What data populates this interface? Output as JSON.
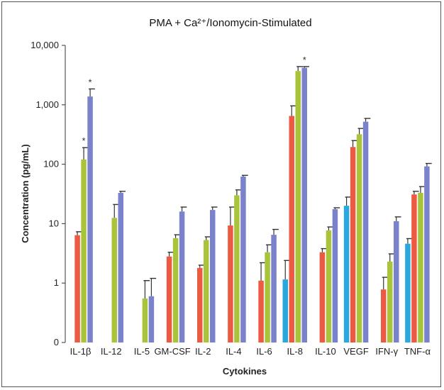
{
  "chart_data": {
    "type": "bar",
    "title": "PMA + Ca²⁺/Ionomycin-Stimulated",
    "xlabel": "Cytokines",
    "ylabel": "Concentration (pg/mL)",
    "yscale": "log",
    "ylim": [
      0.1,
      10000
    ],
    "yticks": [
      {
        "value": 10000,
        "label": "10,000"
      },
      {
        "value": 1000,
        "label": "1,000"
      },
      {
        "value": 100,
        "label": "100"
      },
      {
        "value": 10,
        "label": "10"
      },
      {
        "value": 1,
        "label": "1"
      },
      {
        "value": 0.1,
        "label": "0"
      }
    ],
    "categories": [
      "IL-1β",
      "IL-12",
      "IL-5",
      "GM-CSF",
      "IL-2",
      "IL-4",
      "IL-6",
      "IL-8",
      "IL-10",
      "VEGF",
      "IFN-γ",
      "TNF-α"
    ],
    "series": [
      {
        "color": "#2aa7dc",
        "values": [
          null,
          null,
          null,
          null,
          null,
          null,
          null,
          1.15,
          null,
          20,
          null,
          4.6
        ],
        "errors": [
          null,
          null,
          null,
          null,
          null,
          null,
          null,
          2.4,
          null,
          28,
          null,
          5.6
        ]
      },
      {
        "color": "#ec5a44",
        "values": [
          6.4,
          null,
          null,
          2.8,
          1.8,
          9.3,
          1.1,
          650,
          3.3,
          195,
          0.78,
          31
        ],
        "errors": [
          7.3,
          null,
          null,
          3.3,
          2.0,
          19,
          2.2,
          960,
          3.8,
          250,
          1.25,
          35
        ]
      },
      {
        "color": "#a9c43b",
        "values": [
          120,
          12.5,
          0.55,
          5.7,
          5.3,
          30,
          3.3,
          3700,
          7.7,
          320,
          2.3,
          33
        ],
        "errors": [
          190,
          21,
          1.1,
          6.5,
          6.0,
          37,
          4.4,
          4400,
          8.8,
          400,
          3.1,
          42
        ]
      },
      {
        "color": "#7b82cc",
        "values": [
          1380,
          33,
          0.6,
          16,
          17,
          62,
          6.5,
          4200,
          17.5,
          520,
          11,
          92
        ],
        "errors": [
          1850,
          35,
          1.2,
          19,
          19,
          65,
          8.0,
          4400,
          18.5,
          590,
          13,
          103
        ]
      }
    ],
    "annotations": [
      {
        "category": "IL-1β",
        "series": 2,
        "text": "*"
      },
      {
        "category": "IL-1β",
        "series": 3,
        "text": "*"
      },
      {
        "category": "IL-8",
        "series": 3,
        "text": "*"
      }
    ],
    "grid": false,
    "legend": "none"
  }
}
